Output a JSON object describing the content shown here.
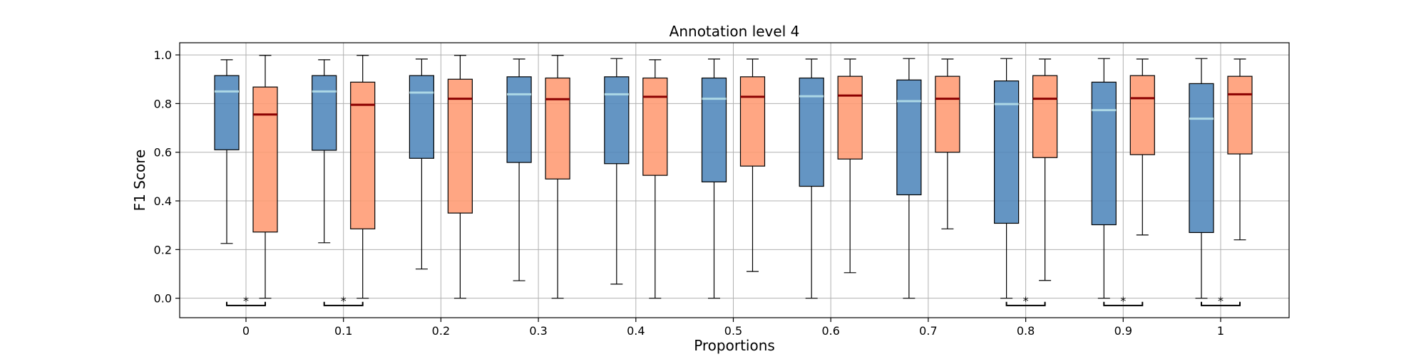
{
  "chart_data": {
    "type": "box",
    "title": "Annotation level 4",
    "xlabel": "Proportions",
    "ylabel": "F1 Score",
    "ylim": [
      -0.08,
      1.05
    ],
    "yticks": [
      "0.0",
      "0.2",
      "0.4",
      "0.6",
      "0.8",
      "1.0"
    ],
    "categories": [
      "0",
      "0.1",
      "0.2",
      "0.3",
      "0.4",
      "0.5",
      "0.6",
      "0.7",
      "0.8",
      "0.9",
      "1"
    ],
    "grid": true,
    "colors": {
      "series_a_fill": "#4f86bb",
      "series_a_median": "#add8e6",
      "series_b_fill": "#ff9a72",
      "series_b_median": "#8b0000",
      "grid": "#b0b0b0"
    },
    "series": [
      {
        "boxes": [
          {
            "whislo": 0.225,
            "q1": 0.61,
            "med": 0.85,
            "q3": 0.915,
            "whishi": 0.98
          },
          {
            "whislo": 0.228,
            "q1": 0.608,
            "med": 0.85,
            "q3": 0.915,
            "whishi": 0.98
          },
          {
            "whislo": 0.12,
            "q1": 0.575,
            "med": 0.845,
            "q3": 0.915,
            "whishi": 0.983
          },
          {
            "whislo": 0.072,
            "q1": 0.558,
            "med": 0.838,
            "q3": 0.91,
            "whishi": 0.983
          },
          {
            "whislo": 0.058,
            "q1": 0.553,
            "med": 0.838,
            "q3": 0.91,
            "whishi": 0.985
          },
          {
            "whislo": 0.0,
            "q1": 0.478,
            "med": 0.82,
            "q3": 0.905,
            "whishi": 0.983
          },
          {
            "whislo": 0.0,
            "q1": 0.46,
            "med": 0.83,
            "q3": 0.905,
            "whishi": 0.983
          },
          {
            "whislo": 0.0,
            "q1": 0.425,
            "med": 0.81,
            "q3": 0.897,
            "whishi": 0.985
          },
          {
            "whislo": 0.0,
            "q1": 0.308,
            "med": 0.798,
            "q3": 0.893,
            "whishi": 0.985
          },
          {
            "whislo": 0.0,
            "q1": 0.302,
            "med": 0.773,
            "q3": 0.888,
            "whishi": 0.985
          },
          {
            "whislo": 0.0,
            "q1": 0.27,
            "med": 0.738,
            "q3": 0.882,
            "whishi": 0.985
          }
        ]
      },
      {
        "boxes": [
          {
            "whislo": 0.0,
            "q1": 0.272,
            "med": 0.755,
            "q3": 0.868,
            "whishi": 0.998
          },
          {
            "whislo": 0.0,
            "q1": 0.285,
            "med": 0.795,
            "q3": 0.888,
            "whishi": 0.998
          },
          {
            "whislo": 0.0,
            "q1": 0.35,
            "med": 0.82,
            "q3": 0.9,
            "whishi": 0.998
          },
          {
            "whislo": 0.0,
            "q1": 0.49,
            "med": 0.818,
            "q3": 0.905,
            "whishi": 0.998
          },
          {
            "whislo": 0.0,
            "q1": 0.505,
            "med": 0.828,
            "q3": 0.905,
            "whishi": 0.98
          },
          {
            "whislo": 0.11,
            "q1": 0.543,
            "med": 0.828,
            "q3": 0.91,
            "whishi": 0.983
          },
          {
            "whislo": 0.105,
            "q1": 0.572,
            "med": 0.833,
            "q3": 0.912,
            "whishi": 0.983
          },
          {
            "whislo": 0.285,
            "q1": 0.6,
            "med": 0.82,
            "q3": 0.912,
            "whishi": 0.983
          },
          {
            "whislo": 0.073,
            "q1": 0.578,
            "med": 0.82,
            "q3": 0.915,
            "whishi": 0.983
          },
          {
            "whislo": 0.26,
            "q1": 0.59,
            "med": 0.822,
            "q3": 0.915,
            "whishi": 0.983
          },
          {
            "whislo": 0.24,
            "q1": 0.593,
            "med": 0.838,
            "q3": 0.912,
            "whishi": 0.983
          }
        ]
      }
    ],
    "significance": [
      {
        "category": "0",
        "label": "*"
      },
      {
        "category": "0.1",
        "label": "*"
      },
      {
        "category": "0.8",
        "label": "*"
      },
      {
        "category": "0.9",
        "label": "*"
      },
      {
        "category": "1",
        "label": "*"
      }
    ]
  }
}
